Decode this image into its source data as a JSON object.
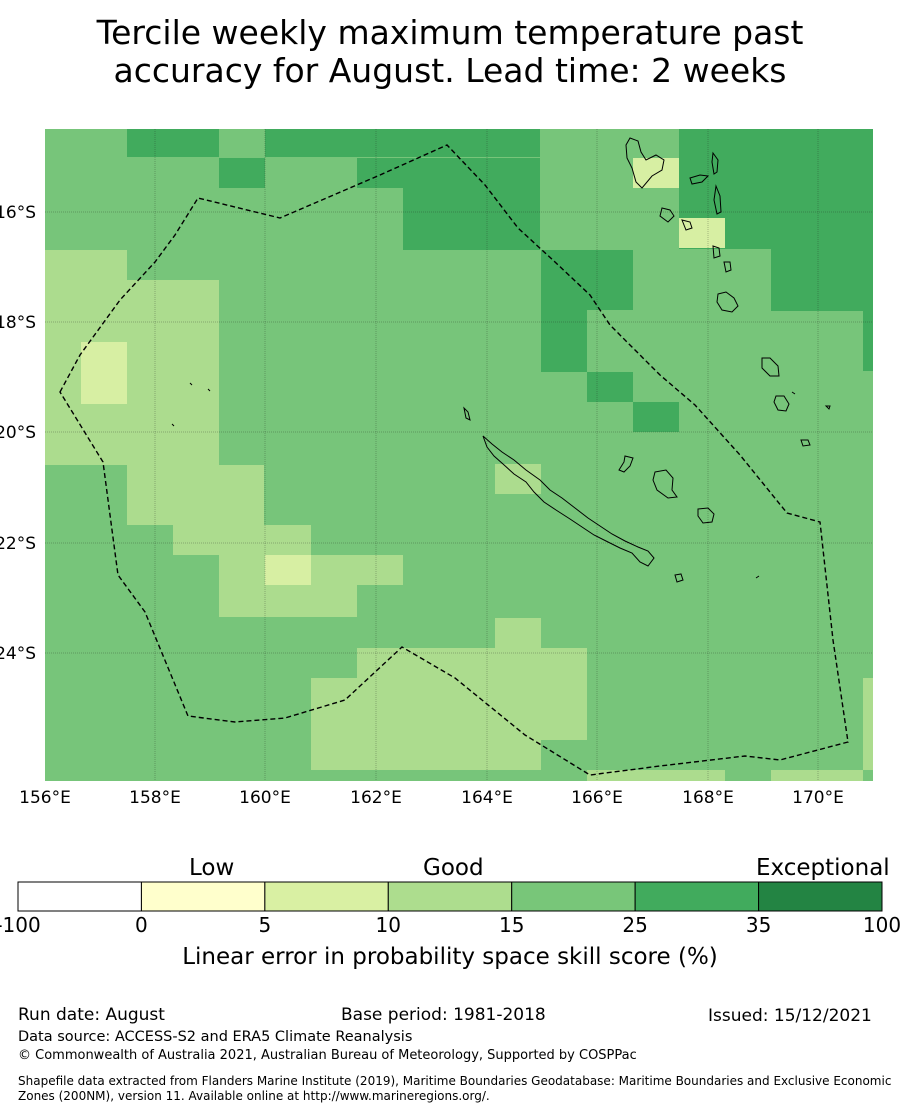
{
  "title": {
    "line1": "Tercile weekly maximum temperature past",
    "line2": "accuracy for August. Lead time: 2 weeks"
  },
  "map": {
    "lon_ticks": [
      "156°E",
      "158°E",
      "160°E",
      "162°E",
      "164°E",
      "166°E",
      "168°E",
      "170°E"
    ],
    "lat_ticks": [
      "16°S",
      "18°S",
      "20°S",
      "22°S",
      "24°S"
    ],
    "lon_range": [
      156,
      171
    ],
    "lat_range": [
      -14.3,
      -26.2
    ],
    "grid": true,
    "boundary_line": "dashed",
    "skill_class_colors": [
      "#d7efa3",
      "#acdc8e",
      "#77c57a",
      "#41ab5d"
    ]
  },
  "colorbar": {
    "category_labels": {
      "low": "Low",
      "good": "Good",
      "exceptional": "Exceptional"
    },
    "tick_labels": [
      "-100",
      "0",
      "5",
      "10",
      "15",
      "25",
      "35",
      "100"
    ],
    "colors": [
      "#ffffff",
      "#ffffcc",
      "#d9f0a3",
      "#addd8e",
      "#78c679",
      "#41ab5d",
      "#238443"
    ],
    "label": "Linear error in probability space skill score (%)"
  },
  "footer": {
    "run_date": "Run date: August",
    "base_period": "Base period: 1981-2018",
    "issued": "Issued: 15/12/2021",
    "data_source": "Data source: ACCESS-S2 and ERA5 Climate Reanalysis",
    "copyright": "© Commonwealth of Australia 2021, Australian Bureau of Meteorology, Supported by COSPPac",
    "shapefile_line1": "Shapefile data extracted from Flanders Marine Institute (2019), Maritime Boundaries Geodatabase: Maritime Boundaries and Exclusive Economic",
    "shapefile_line2": "Zones (200NM), version 11. Available online at http://www.marineregions.org/."
  }
}
